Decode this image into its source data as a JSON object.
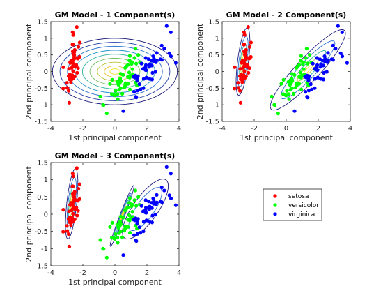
{
  "chart_data": [
    {
      "type": "scatter",
      "title": "GM Model - 1 Component(s)",
      "xlabel": "1st principal component",
      "ylabel": "2nd principal component",
      "xlim": [
        -4,
        4
      ],
      "ylim": [
        -1.5,
        1.5
      ],
      "xticks": [
        -4,
        -2,
        0,
        2,
        4
      ],
      "yticks": [
        -1.5,
        -1,
        -0.5,
        0,
        0.5,
        1,
        1.5
      ],
      "components": [
        {
          "center": [
            0,
            0
          ],
          "rx": 3.9,
          "ry": 1.0,
          "angle_deg": 0,
          "levels": [
            1.0,
            0.88,
            0.76,
            0.64,
            0.52,
            0.4,
            0.28,
            0.17,
            0.08
          ],
          "colors": [
            "#1a1a7a",
            "#233fa8",
            "#2b6fd0",
            "#1e93c8",
            "#2ab09a",
            "#72c060",
            "#b8c43a",
            "#e6c030",
            "#f6e020"
          ]
        }
      ]
    },
    {
      "type": "scatter",
      "title": "GM Model - 2 Component(s)",
      "xlabel": "1st principal component",
      "ylabel": "2nd principal component",
      "xlim": [
        -4,
        4
      ],
      "ylim": [
        -1.5,
        1.5
      ],
      "xticks": [
        -4,
        -2,
        0,
        2,
        4
      ],
      "yticks": [
        -1.5,
        -1,
        -0.5,
        0,
        0.5,
        1,
        1.5
      ],
      "components": [
        {
          "center": [
            -2.7,
            0.3
          ],
          "rx": 1.05,
          "ry": 0.33,
          "angle_deg": 74,
          "levels": [
            1.0,
            0.75,
            0.52,
            0.33,
            0.17
          ],
          "colors": [
            "#1a1a7a",
            "#2b6fd0",
            "#2ab09a",
            "#b8c43a",
            "#f6e020"
          ]
        },
        {
          "center": [
            1.35,
            0.05
          ],
          "rx": 2.6,
          "ry": 0.45,
          "angle_deg": 26,
          "levels": [
            1.0,
            0.72,
            0.48,
            0.28,
            0.13
          ],
          "colors": [
            "#1a1a7a",
            "#2b6fd0",
            "#2ab09a",
            "#b8c43a",
            "#f6e020"
          ]
        }
      ]
    },
    {
      "type": "scatter",
      "title": "GM Model - 3 Component(s)",
      "xlabel": "1st principal component",
      "ylabel": "2nd principal component",
      "xlim": [
        -4,
        4
      ],
      "ylim": [
        -1.5,
        1.5
      ],
      "xticks": [
        -4,
        -2,
        0,
        2,
        4
      ],
      "yticks": [
        -1.5,
        -1,
        -0.5,
        0,
        0.5,
        1,
        1.5
      ],
      "components": [
        {
          "center": [
            -2.7,
            0.3
          ],
          "rx": 1.05,
          "ry": 0.3,
          "angle_deg": 76,
          "levels": [
            1.0,
            0.75,
            0.52,
            0.33,
            0.17
          ],
          "colors": [
            "#1a1a7a",
            "#2b6fd0",
            "#2ab09a",
            "#b8c43a",
            "#f6e020"
          ]
        },
        {
          "center": [
            0.45,
            -0.05
          ],
          "rx": 1.15,
          "ry": 0.12,
          "angle_deg": 50,
          "levels": [
            1.0,
            0.75,
            0.52,
            0.33,
            0.17
          ],
          "colors": [
            "#1a1a7a",
            "#2b6fd0",
            "#2ab09a",
            "#b8c43a",
            "#f6e020"
          ]
        },
        {
          "center": [
            1.9,
            0.15
          ],
          "rx": 1.6,
          "ry": 0.5,
          "angle_deg": 28,
          "levels": [
            1.0,
            0.72
          ],
          "colors": [
            "#1a1a7a",
            "#2b6fd0"
          ]
        }
      ]
    }
  ],
  "series": [
    {
      "name": "setosa",
      "color": "#ff0000",
      "points": [
        [
          -2.68,
          0.32
        ],
        [
          -2.71,
          -0.18
        ],
        [
          -2.89,
          -0.14
        ],
        [
          -2.75,
          -0.32
        ],
        [
          -2.73,
          0.33
        ],
        [
          -2.28,
          0.74
        ],
        [
          -2.82,
          -0.09
        ],
        [
          -2.63,
          0.16
        ],
        [
          -2.89,
          -0.58
        ],
        [
          -2.67,
          -0.11
        ],
        [
          -2.51,
          0.65
        ],
        [
          -2.61,
          0.01
        ],
        [
          -2.79,
          -0.24
        ],
        [
          -3.23,
          -0.51
        ],
        [
          -2.64,
          1.18
        ],
        [
          -2.38,
          1.34
        ],
        [
          -2.62,
          0.81
        ],
        [
          -2.65,
          0.31
        ],
        [
          -2.2,
          0.87
        ],
        [
          -2.59,
          0.51
        ],
        [
          -2.31,
          0.39
        ],
        [
          -2.54,
          0.43
        ],
        [
          -3.22,
          0.13
        ],
        [
          -2.3,
          0.1
        ],
        [
          -2.36,
          -0.04
        ],
        [
          -2.51,
          -0.15
        ],
        [
          -2.47,
          0.14
        ],
        [
          -2.56,
          0.37
        ],
        [
          -2.64,
          0.31
        ],
        [
          -2.63,
          -0.19
        ],
        [
          -2.59,
          -0.2
        ],
        [
          -2.41,
          0.41
        ],
        [
          -2.65,
          0.81
        ],
        [
          -2.6,
          1.1
        ],
        [
          -2.67,
          -0.11
        ],
        [
          -2.87,
          0.08
        ],
        [
          -2.63,
          0.6
        ],
        [
          -2.8,
          0.27
        ],
        [
          -2.98,
          -0.49
        ],
        [
          -2.59,
          0.23
        ],
        [
          -2.77,
          0.26
        ],
        [
          -2.85,
          -0.94
        ],
        [
          -3.0,
          -0.34
        ],
        [
          -2.41,
          0.19
        ],
        [
          -2.21,
          0.44
        ],
        [
          -2.72,
          -0.25
        ],
        [
          -2.54,
          0.5
        ],
        [
          -2.84,
          -0.23
        ],
        [
          -2.54,
          0.58
        ],
        [
          -2.7,
          0.11
        ]
      ]
    },
    {
      "name": "versicolor",
      "color": "#00ff00",
      "points": [
        [
          1.28,
          0.69
        ],
        [
          0.93,
          0.32
        ],
        [
          1.46,
          0.5
        ],
        [
          0.18,
          -0.83
        ],
        [
          1.09,
          0.07
        ],
        [
          0.64,
          -0.42
        ],
        [
          1.1,
          0.28
        ],
        [
          -0.75,
          -1.0
        ],
        [
          1.04,
          0.23
        ],
        [
          -0.01,
          -0.72
        ],
        [
          -0.51,
          -1.26
        ],
        [
          0.51,
          -0.1
        ],
        [
          0.26,
          -0.55
        ],
        [
          0.98,
          -0.12
        ],
        [
          -0.17,
          -0.25
        ],
        [
          0.93,
          0.47
        ],
        [
          0.66,
          -0.35
        ],
        [
          0.23,
          -0.33
        ],
        [
          0.94,
          -0.54
        ],
        [
          0.04,
          -0.58
        ],
        [
          1.12,
          -0.08
        ],
        [
          0.36,
          -0.07
        ],
        [
          1.3,
          -0.33
        ],
        [
          0.92,
          -0.18
        ],
        [
          0.71,
          0.15
        ],
        [
          0.9,
          0.33
        ],
        [
          1.33,
          0.24
        ],
        [
          1.56,
          0.27
        ],
        [
          0.81,
          -0.16
        ],
        [
          -0.31,
          -0.37
        ],
        [
          -0.07,
          -0.7
        ],
        [
          -0.19,
          -0.68
        ],
        [
          0.14,
          -0.31
        ],
        [
          1.38,
          -0.42
        ],
        [
          0.59,
          -0.48
        ],
        [
          0.81,
          0.2
        ],
        [
          1.22,
          0.41
        ],
        [
          0.81,
          -0.37
        ],
        [
          0.25,
          -0.27
        ],
        [
          0.16,
          -0.68
        ],
        [
          0.46,
          -0.67
        ],
        [
          0.89,
          -0.03
        ],
        [
          0.23,
          -0.4
        ],
        [
          -0.71,
          -1.01
        ],
        [
          0.36,
          -0.5
        ],
        [
          0.33,
          -0.21
        ],
        [
          0.38,
          -0.29
        ],
        [
          0.64,
          0.11
        ],
        [
          -0.91,
          -0.75
        ],
        [
          0.3,
          -0.35
        ]
      ]
    },
    {
      "name": "virginica",
      "color": "#0000ff",
      "points": [
        [
          2.53,
          -0.01
        ],
        [
          1.41,
          -0.57
        ],
        [
          2.62,
          0.34
        ],
        [
          1.97,
          -0.18
        ],
        [
          2.35,
          -0.04
        ],
        [
          3.4,
          0.55
        ],
        [
          0.52,
          -1.19
        ],
        [
          2.93,
          0.35
        ],
        [
          2.32,
          -0.24
        ],
        [
          2.92,
          0.78
        ],
        [
          1.66,
          0.24
        ],
        [
          1.8,
          -0.22
        ],
        [
          2.17,
          0.22
        ],
        [
          1.34,
          -0.78
        ],
        [
          1.59,
          -0.54
        ],
        [
          1.9,
          0.12
        ],
        [
          1.95,
          0.04
        ],
        [
          3.49,
          1.18
        ],
        [
          3.8,
          0.26
        ],
        [
          1.3,
          -0.76
        ],
        [
          2.43,
          0.38
        ],
        [
          1.2,
          -0.61
        ],
        [
          3.5,
          0.46
        ],
        [
          1.39,
          -0.2
        ],
        [
          2.28,
          0.33
        ],
        [
          2.61,
          0.56
        ],
        [
          1.26,
          -0.18
        ],
        [
          1.29,
          -0.12
        ],
        [
          2.12,
          -0.21
        ],
        [
          2.39,
          0.46
        ],
        [
          2.84,
          0.37
        ],
        [
          3.23,
          1.37
        ],
        [
          2.16,
          -0.22
        ],
        [
          1.44,
          -0.14
        ],
        [
          1.78,
          -0.5
        ],
        [
          3.08,
          0.69
        ],
        [
          2.14,
          0.14
        ],
        [
          1.9,
          0.05
        ],
        [
          1.17,
          -0.16
        ],
        [
          2.11,
          0.37
        ],
        [
          2.31,
          0.18
        ],
        [
          1.92,
          0.41
        ],
        [
          1.42,
          -0.57
        ],
        [
          2.56,
          0.28
        ],
        [
          2.42,
          0.3
        ],
        [
          1.94,
          0.19
        ],
        [
          1.53,
          -0.38
        ],
        [
          1.76,
          0.08
        ],
        [
          1.9,
          0.12
        ],
        [
          1.39,
          -0.28
        ]
      ]
    }
  ],
  "legend": {
    "entries": [
      {
        "label": "setosa",
        "color": "#ff0000"
      },
      {
        "label": "versicolor",
        "color": "#00ff00"
      },
      {
        "label": "virginica",
        "color": "#0000ff"
      }
    ]
  }
}
